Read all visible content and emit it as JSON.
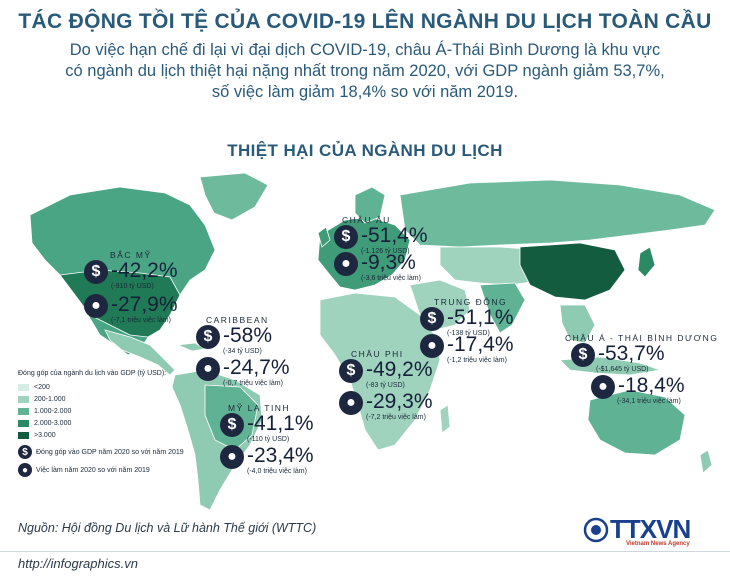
{
  "header": {
    "title": "TÁC ĐỘNG TỒI TỆ CỦA COVID-19 LÊN NGÀNH DU LỊCH TOÀN CẦU",
    "intro_lines": [
      "Do việc hạn chế đi lại vì đại dịch COVID-19, châu Á-Thái Bình Dương là khu vực",
      "có ngành du lịch thiệt hại nặng nhất trong năm 2020, với GDP ngành giảm 53,7%,",
      "số việc làm giảm 18,4% so với năm 2019."
    ],
    "subtitle": "THIỆT HẠI CỦA NGÀNH DU LỊCH"
  },
  "regions": [
    {
      "name": "BẮC MỸ",
      "gdp": "-42,2%",
      "gdp_note": "(-910 tỷ USD)",
      "jobs": "-27,9%",
      "jobs_note": "(-7,1 triệu việc làm)"
    },
    {
      "name": "CARIBBEAN",
      "gdp": "-58%",
      "gdp_note": "(-34 tỷ USD)",
      "jobs": "-24,7%",
      "jobs_note": "(-0,7 triệu việc làm)"
    },
    {
      "name": "MỸ LA TINH",
      "gdp": "-41,1%",
      "gdp_note": "(-110 tỷ USD)",
      "jobs": "-23,4%",
      "jobs_note": "(-4,0 triệu việc làm)"
    },
    {
      "name": "CHÂU ÂU",
      "gdp": "-51,4%",
      "gdp_note": "(-1.126 tỷ USD)",
      "jobs": "-9,3%",
      "jobs_note": "(-3,6 triệu việc làm)"
    },
    {
      "name": "TRUNG ĐÔNG",
      "gdp": "-51,1%",
      "gdp_note": "(-138 tỷ USD)",
      "jobs": "-17,4%",
      "jobs_note": "(-1,2 triệu việc làm)"
    },
    {
      "name": "CHÂU PHI",
      "gdp": "-49,2%",
      "gdp_note": "(-83 tỷ USD)",
      "jobs": "-29,3%",
      "jobs_note": "(-7,2 triệu việc làm)"
    },
    {
      "name": "CHÂU Á - THÁI BÌNH DƯƠNG",
      "gdp": "-53,7%",
      "gdp_note": "(-$1,645 tỷ USD)",
      "jobs": "-18,4%",
      "jobs_note": "(-34,1 triệu việc làm)"
    }
  ],
  "legend": {
    "heading": "Đóng góp của ngành du lịch vào GDP (tỷ USD):",
    "bins": [
      {
        "label": "<200",
        "color": "#d6ece4"
      },
      {
        "label": "200-1.000",
        "color": "#9fd3be"
      },
      {
        "label": "1.000-2.000",
        "color": "#5fb394"
      },
      {
        "label": "2.000-3.000",
        "color": "#2b8a63"
      },
      {
        "label": ">3.000",
        "color": "#135c3f"
      }
    ],
    "gdp_icon_label": "Đóng góp vào GDP năm 2020 so với năm 2019",
    "jobs_icon_label": "Việc làm năm 2020 so với năm 2019"
  },
  "icons": {
    "gdp": "dollar-icon",
    "jobs": "person-icon"
  },
  "map_color": "#5fb394",
  "footer": {
    "source": "Nguồn: Hội đồng Du lịch và Lữ hành Thế giới (WTTC)",
    "url": "http://infographics.vn",
    "logo_text": "TTXVN",
    "logo_sub": "Vietnam News Agency"
  }
}
